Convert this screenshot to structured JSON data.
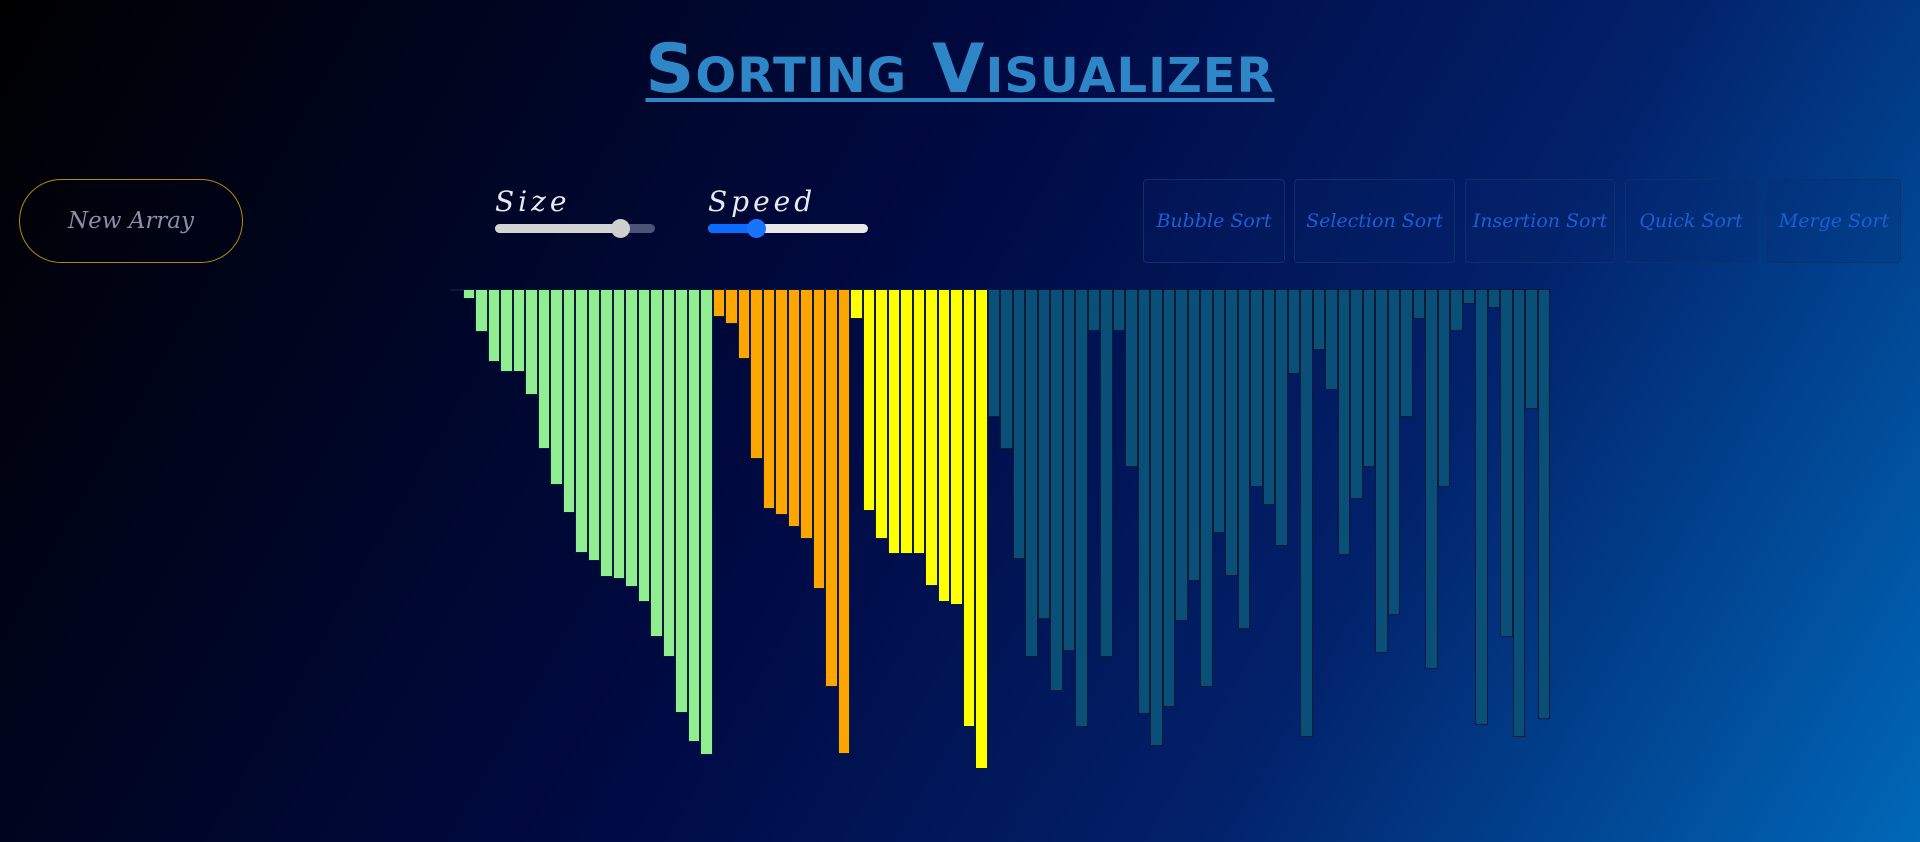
{
  "header": {
    "title": "Sorting Visualizer"
  },
  "controls": {
    "new_array_label": "New Array",
    "size": {
      "label": "Size",
      "value_fraction": 0.78
    },
    "speed": {
      "label": "Speed",
      "value_fraction": 0.3
    }
  },
  "algorithms": [
    {
      "label": "Bubble Sort"
    },
    {
      "label": "Selection Sort"
    },
    {
      "label": "Insertion Sort"
    },
    {
      "label": "Quick Sort"
    },
    {
      "label": "Merge Sort"
    }
  ],
  "colors": {
    "sorted": "#90ee90",
    "orange": "#ffa500",
    "yellow": "#ffff00",
    "unsorted": "#0a4f78",
    "title": "#2f86c6"
  },
  "array": {
    "groups": [
      {
        "color_key": "sorted",
        "values": [
          2,
          10,
          43,
          73,
          83,
          83,
          106,
          160,
          196,
          224,
          264,
          272,
          288,
          290,
          298,
          313,
          348,
          368,
          424,
          453,
          466
        ]
      },
      {
        "color_key": "orange",
        "values": [
          28,
          35,
          70,
          170,
          220,
          226,
          238,
          250,
          300,
          398,
          465
        ]
      },
      {
        "color_key": "yellow",
        "values": [
          30,
          222,
          250,
          265,
          265,
          265,
          297,
          313,
          316,
          438,
          480
        ]
      },
      {
        "color_key": "unsorted",
        "values": [
          128,
          160,
          270,
          368,
          330,
          402,
          362,
          438,
          42,
          368,
          42,
          178,
          425,
          457,
          418,
          332,
          292,
          398,
          244,
          287,
          340,
          198,
          216,
          257,
          85,
          448,
          61,
          101,
          266,
          210,
          178,
          364,
          326,
          128,
          30,
          380,
          198,
          42,
          15,
          436,
          19,
          348,
          448,
          120,
          430
        ]
      }
    ]
  }
}
